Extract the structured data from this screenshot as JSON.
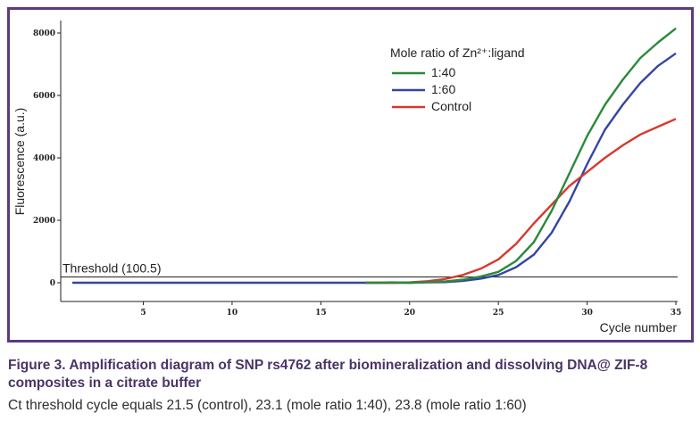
{
  "figure": {
    "caption_title": "Figure 3. Amplification diagram of SNP rs4762 after biomineralization and dissolving DNA@ ZIF-8 composites in a citrate buffer",
    "caption_subtitle": "Ct threshold cycle equals 21.5 (control), 23.1 (mole ratio 1:40), 23.8 (mole ratio 1:60)"
  },
  "chart_data": {
    "type": "line",
    "title": "",
    "xlabel": "Cycle number",
    "ylabel": "Fluorescence (a.u.)",
    "xlim": [
      1,
      35
    ],
    "ylim": [
      -600,
      8400
    ],
    "x_ticks": [
      5,
      10,
      15,
      20,
      25,
      30,
      35
    ],
    "y_ticks": [
      0,
      2000,
      4000,
      6000,
      8000
    ],
    "grid": false,
    "legend": {
      "title": "Mole ratio of Zn²⁺:ligand",
      "placement": "top-right"
    },
    "threshold": {
      "label": "Threshold (100.5)",
      "value": 100.5
    },
    "colors": {
      "1:40": "#2a8a3a",
      "1:60": "#3545a0",
      "Control": "#d63a2e",
      "threshold": "#222222",
      "frame": "#5b3a82"
    },
    "series": [
      {
        "name": "1:40",
        "x": [
          17.5,
          18,
          19,
          20,
          21,
          22,
          23,
          24,
          25,
          26,
          27,
          28,
          29,
          30,
          31,
          32,
          33,
          34,
          35
        ],
        "values": [
          0,
          0,
          10,
          0,
          20,
          40,
          100,
          200,
          350,
          700,
          1300,
          2300,
          3500,
          4700,
          5700,
          6500,
          7200,
          7700,
          8150
        ]
      },
      {
        "name": "1:60",
        "x": [
          1,
          5,
          10,
          15,
          20,
          21,
          22,
          23,
          24,
          25,
          26,
          27,
          28,
          29,
          30,
          31,
          32,
          33,
          34,
          35
        ],
        "values": [
          0,
          0,
          0,
          0,
          0,
          10,
          20,
          60,
          130,
          250,
          500,
          900,
          1600,
          2600,
          3800,
          4900,
          5700,
          6400,
          6950,
          7350
        ]
      },
      {
        "name": "Control",
        "x": [
          17.5,
          19,
          20,
          21,
          22,
          23,
          24,
          25,
          26,
          27,
          28,
          29,
          30,
          31,
          32,
          33,
          34,
          35
        ],
        "values": [
          0,
          0,
          10,
          50,
          120,
          250,
          450,
          750,
          1250,
          1900,
          2500,
          3100,
          3550,
          4000,
          4400,
          4750,
          5000,
          5250
        ]
      }
    ]
  }
}
